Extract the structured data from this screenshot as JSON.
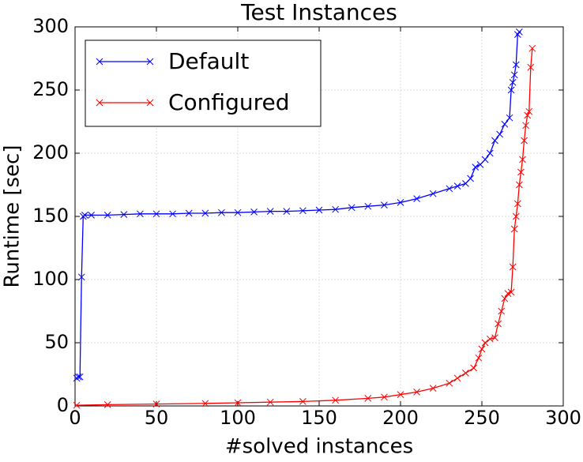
{
  "chart_data": {
    "type": "line",
    "title": "Test Instances",
    "xlabel": "#solved instances",
    "ylabel": "Runtime [sec]",
    "xlim": [
      0,
      300
    ],
    "ylim": [
      0,
      300
    ],
    "xticks": [
      0,
      50,
      100,
      150,
      200,
      250,
      300
    ],
    "yticks": [
      0,
      50,
      100,
      150,
      200,
      250,
      300
    ],
    "grid": true,
    "legend": "upper left",
    "marker": "x",
    "series": [
      {
        "name": "Default",
        "color": "#0000ff",
        "x": [
          1,
          2,
          3,
          4,
          5,
          6,
          10,
          20,
          30,
          40,
          50,
          60,
          70,
          80,
          90,
          100,
          110,
          120,
          130,
          140,
          150,
          160,
          170,
          180,
          190,
          200,
          210,
          220,
          230,
          235,
          240,
          243,
          246,
          249,
          252,
          255,
          258,
          261,
          264,
          267,
          268,
          269,
          270,
          271,
          272,
          273
        ],
        "values": [
          22,
          23,
          23,
          102,
          150,
          151,
          151,
          151,
          151.5,
          152,
          152,
          152,
          152.5,
          152.5,
          153,
          153,
          153.5,
          154,
          154,
          154.5,
          155,
          155.5,
          157,
          158,
          159,
          161,
          164,
          168,
          172,
          174,
          176,
          180,
          189,
          191,
          195,
          200,
          210,
          215,
          223,
          228,
          250,
          256,
          262,
          270,
          294,
          296
        ]
      },
      {
        "name": "Configured",
        "color": "#ff0000",
        "x": [
          1,
          20,
          50,
          80,
          100,
          120,
          140,
          160,
          180,
          190,
          200,
          210,
          220,
          230,
          235,
          240,
          245,
          248,
          250,
          252,
          255,
          258,
          260,
          262,
          264,
          266,
          268,
          269,
          270,
          271,
          272,
          273,
          274,
          275,
          276,
          277,
          278,
          279,
          280,
          281
        ],
        "values": [
          0.5,
          1,
          1.5,
          2,
          2.5,
          3,
          3.5,
          4.5,
          6,
          7,
          9,
          11,
          14,
          18,
          22,
          26,
          30,
          38,
          45,
          50,
          53,
          54,
          65,
          75,
          85,
          89,
          90,
          110,
          140,
          150,
          160,
          175,
          185,
          195,
          210,
          222,
          230,
          233,
          268,
          283
        ]
      }
    ]
  }
}
